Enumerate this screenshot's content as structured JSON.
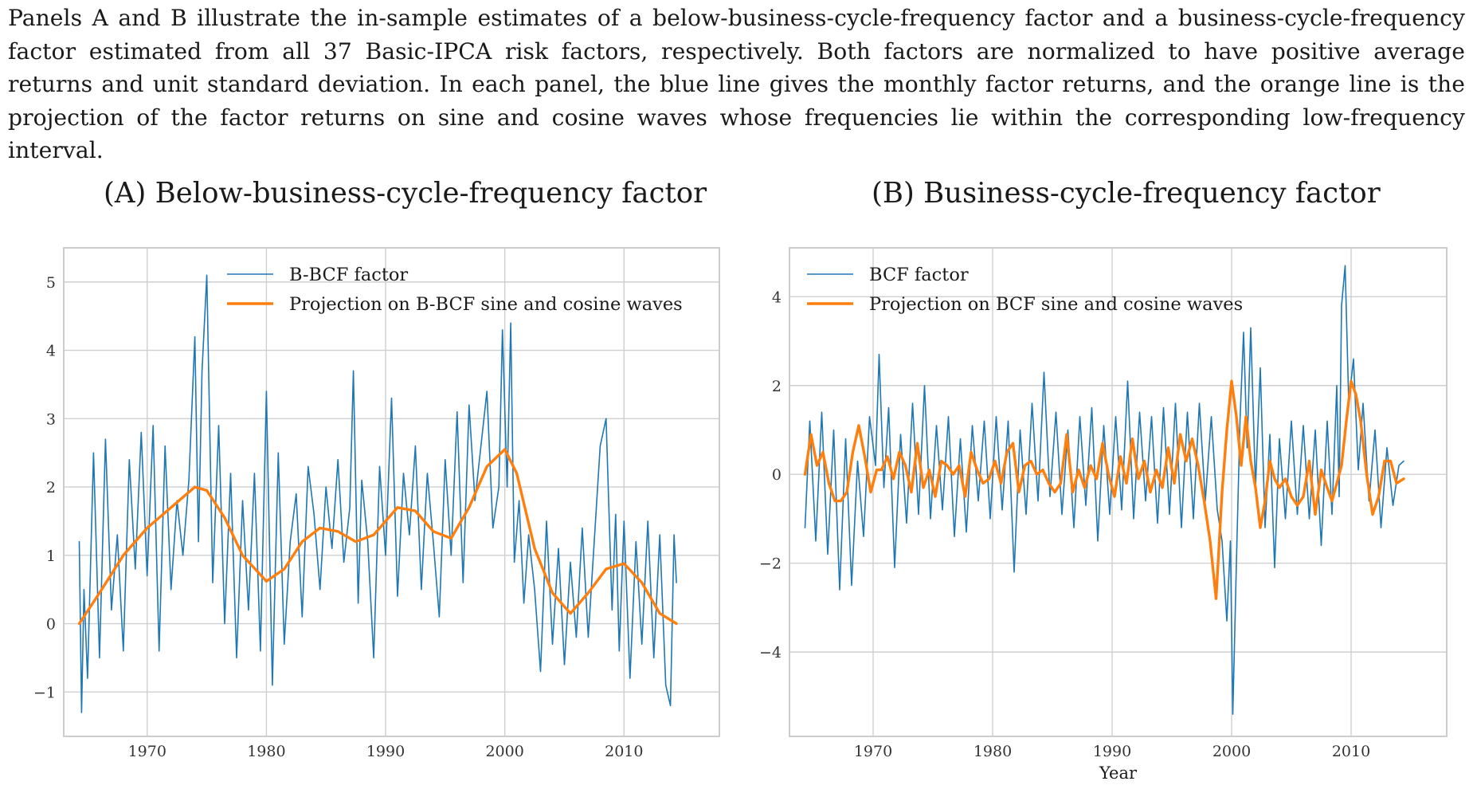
{
  "caption": "Panels A and B illustrate the in-sample estimates of a below-business-cycle-frequency factor and a business-cycle-frequency factor estimated from all 37 Basic-IPCA risk factors, respectively. Both factors are normalized to have positive average returns and unit standard deviation. In each panel, the blue line gives the monthly factor returns, and the orange line is the projection of the factor returns on sine and cosine waves whose frequencies lie within the corresponding low-frequency interval.",
  "colors": {
    "factor": "#1f77b4",
    "projection": "#ff7f0e",
    "grid": "#cfcfcf",
    "spine": "#cccccc"
  },
  "chart_data": [
    {
      "type": "line",
      "panel_title": "(A) Below-business-cycle-frequency factor",
      "xlabel": "",
      "ylabel": "",
      "xlim": [
        1963.0,
        2018.0
      ],
      "ylim": [
        -1.65,
        5.5
      ],
      "xticks": [
        1970,
        1980,
        1990,
        2000,
        2010
      ],
      "xtick_labels": [
        "1970",
        "1980",
        "1990",
        "2000",
        "2010"
      ],
      "yticks": [
        -1,
        0,
        1,
        2,
        3,
        4,
        5
      ],
      "ytick_labels": [
        "−1",
        "0",
        "1",
        "2",
        "3",
        "4",
        "5"
      ],
      "grid": true,
      "legend_position": "top-center",
      "series": [
        {
          "name": "B-BCF factor",
          "style": "thin line (monthly returns, jagged)",
          "x": [
            1964.3,
            1964.5,
            1964.7,
            1965.0,
            1965.5,
            1966.0,
            1966.5,
            1967.0,
            1967.5,
            1968.0,
            1968.5,
            1969.0,
            1969.5,
            1970.0,
            1970.5,
            1971.0,
            1971.5,
            1972.0,
            1972.5,
            1973.0,
            1973.5,
            1974.0,
            1974.3,
            1974.6,
            1975.0,
            1975.5,
            1976.0,
            1976.5,
            1977.0,
            1977.5,
            1978.0,
            1978.5,
            1979.0,
            1979.5,
            1980.0,
            1980.5,
            1981.0,
            1981.5,
            1982.0,
            1982.5,
            1983.0,
            1983.5,
            1984.0,
            1984.5,
            1985.0,
            1985.5,
            1986.0,
            1986.5,
            1987.0,
            1987.3,
            1987.7,
            1988.0,
            1988.5,
            1989.0,
            1989.5,
            1990.0,
            1990.5,
            1991.0,
            1991.5,
            1992.0,
            1992.5,
            1993.0,
            1993.5,
            1994.0,
            1994.5,
            1995.0,
            1995.5,
            1996.0,
            1996.5,
            1997.0,
            1997.5,
            1998.0,
            1998.5,
            1999.0,
            1999.5,
            1999.8,
            2000.2,
            2000.5,
            2000.8,
            2001.2,
            2001.6,
            2002.0,
            2002.5,
            2003.0,
            2003.5,
            2004.0,
            2004.5,
            2005.0,
            2005.5,
            2006.0,
            2006.5,
            2007.0,
            2007.5,
            2008.0,
            2008.5,
            2009.0,
            2009.3,
            2009.6,
            2010.0,
            2010.5,
            2011.0,
            2011.5,
            2012.0,
            2012.5,
            2013.0,
            2013.5,
            2013.9,
            2014.2,
            2014.4
          ],
          "y": [
            1.2,
            -1.3,
            0.5,
            -0.8,
            2.5,
            -0.5,
            2.7,
            0.2,
            1.3,
            -0.4,
            2.4,
            0.8,
            2.8,
            0.7,
            2.9,
            -0.4,
            2.6,
            0.5,
            1.8,
            1.0,
            2.1,
            4.2,
            1.2,
            3.7,
            5.1,
            0.6,
            2.9,
            0.0,
            2.2,
            -0.5,
            1.8,
            0.2,
            2.2,
            -0.4,
            3.4,
            -0.9,
            2.5,
            -0.3,
            1.2,
            1.9,
            0.1,
            2.3,
            1.6,
            0.5,
            2.0,
            1.1,
            2.4,
            0.9,
            1.7,
            3.7,
            0.3,
            2.1,
            1.2,
            -0.5,
            2.3,
            1.0,
            3.3,
            0.4,
            2.2,
            1.3,
            2.6,
            0.5,
            2.2,
            1.2,
            0.1,
            2.4,
            1.0,
            3.1,
            0.6,
            3.2,
            1.8,
            2.6,
            3.4,
            1.4,
            2.0,
            4.3,
            2.0,
            4.4,
            0.9,
            1.8,
            0.3,
            1.3,
            0.5,
            -0.7,
            1.5,
            -0.3,
            1.1,
            -0.6,
            0.9,
            -0.2,
            1.4,
            -0.2,
            1.2,
            2.6,
            3.0,
            0.2,
            1.6,
            -0.4,
            1.5,
            -0.8,
            1.2,
            -0.3,
            1.5,
            -0.5,
            1.3,
            -0.9,
            -1.2,
            1.3,
            0.6
          ]
        },
        {
          "name": "Projection on B-BCF sine and cosine waves",
          "style": "thick smooth line",
          "x": [
            1964.3,
            1966.0,
            1968.0,
            1970.0,
            1972.0,
            1974.0,
            1975.0,
            1976.5,
            1978.0,
            1980.0,
            1981.5,
            1983.0,
            1984.5,
            1986.0,
            1987.5,
            1989.0,
            1991.0,
            1992.5,
            1994.0,
            1995.5,
            1997.0,
            1998.5,
            2000.0,
            2001.0,
            2002.5,
            2004.0,
            2005.5,
            2007.0,
            2008.5,
            2010.0,
            2011.5,
            2013.0,
            2014.4
          ],
          "y": [
            0.0,
            0.45,
            1.0,
            1.4,
            1.7,
            2.0,
            1.95,
            1.55,
            1.0,
            0.62,
            0.8,
            1.2,
            1.4,
            1.35,
            1.2,
            1.3,
            1.7,
            1.65,
            1.35,
            1.25,
            1.7,
            2.3,
            2.55,
            2.2,
            1.1,
            0.45,
            0.15,
            0.45,
            0.8,
            0.88,
            0.6,
            0.15,
            0.0
          ]
        }
      ]
    },
    {
      "type": "line",
      "panel_title": "(B) Business-cycle-frequency factor",
      "xlabel": "Year",
      "ylabel": "",
      "xlim": [
        1963.0,
        2018.0
      ],
      "ylim": [
        -5.9,
        5.1
      ],
      "xticks": [
        1970,
        1980,
        1990,
        2000,
        2010
      ],
      "xtick_labels": [
        "1970",
        "1980",
        "1990",
        "2000",
        "2010"
      ],
      "yticks": [
        -4,
        -2,
        0,
        2,
        4
      ],
      "ytick_labels": [
        "−4",
        "−2",
        "0",
        "2",
        "4"
      ],
      "grid": true,
      "legend_position": "top-left",
      "series": [
        {
          "name": "BCF factor",
          "style": "thin line (monthly returns, jagged)",
          "x": [
            1964.3,
            1964.7,
            1965.2,
            1965.7,
            1966.2,
            1966.7,
            1967.2,
            1967.7,
            1968.2,
            1968.7,
            1969.2,
            1969.7,
            1970.2,
            1970.5,
            1970.9,
            1971.3,
            1971.8,
            1972.3,
            1972.8,
            1973.3,
            1973.8,
            1974.3,
            1974.8,
            1975.3,
            1975.8,
            1976.3,
            1976.8,
            1977.3,
            1977.8,
            1978.3,
            1978.8,
            1979.3,
            1979.8,
            1980.3,
            1980.8,
            1981.3,
            1981.8,
            1982.3,
            1982.8,
            1983.3,
            1983.8,
            1984.3,
            1984.8,
            1985.3,
            1985.8,
            1986.3,
            1986.8,
            1987.3,
            1987.8,
            1988.3,
            1988.8,
            1989.3,
            1989.8,
            1990.3,
            1990.8,
            1991.3,
            1991.8,
            1992.3,
            1992.8,
            1993.3,
            1993.8,
            1994.3,
            1994.8,
            1995.3,
            1995.8,
            1996.3,
            1996.8,
            1997.3,
            1997.8,
            1998.3,
            1998.8,
            1999.2,
            1999.6,
            1999.9,
            2000.1,
            2000.4,
            2000.7,
            2001.0,
            2001.3,
            2001.6,
            2002.0,
            2002.4,
            2002.8,
            2003.2,
            2003.6,
            2004.0,
            2004.5,
            2005.0,
            2005.5,
            2006.0,
            2006.5,
            2007.0,
            2007.5,
            2008.0,
            2008.4,
            2008.8,
            2009.0,
            2009.2,
            2009.5,
            2009.8,
            2010.2,
            2010.6,
            2011.0,
            2011.5,
            2012.0,
            2012.5,
            2013.0,
            2013.5,
            2014.0,
            2014.4
          ],
          "y": [
            -1.2,
            1.2,
            -1.5,
            1.4,
            -1.8,
            1.0,
            -2.6,
            0.8,
            -2.5,
            0.3,
            -1.4,
            1.3,
            0.2,
            2.7,
            -0.3,
            1.5,
            -2.1,
            0.9,
            -1.1,
            1.6,
            -0.9,
            2.0,
            -1.0,
            1.1,
            -0.8,
            1.3,
            -1.4,
            0.8,
            -1.3,
            1.1,
            -0.6,
            1.2,
            -1.0,
            1.3,
            -0.8,
            1.2,
            -2.2,
            1.0,
            -0.9,
            1.6,
            -0.6,
            2.3,
            -0.5,
            1.4,
            -0.9,
            1.0,
            -1.2,
            1.3,
            -0.7,
            1.5,
            -1.5,
            1.1,
            -0.9,
            1.3,
            -0.8,
            2.1,
            -1.0,
            1.4,
            -0.6,
            1.3,
            -1.1,
            1.5,
            -0.9,
            1.6,
            -1.2,
            1.4,
            -1.0,
            1.6,
            -0.6,
            1.3,
            -0.8,
            -1.5,
            -3.3,
            -1.5,
            -5.4,
            -2.0,
            1.2,
            3.2,
            0.6,
            3.3,
            -0.3,
            2.4,
            -1.2,
            0.9,
            -2.1,
            0.8,
            -1.0,
            1.2,
            -0.9,
            1.1,
            -1.0,
            1.0,
            -1.6,
            1.2,
            -0.9,
            2.0,
            -0.5,
            3.8,
            4.7,
            1.6,
            2.6,
            0.1,
            1.6,
            -0.6,
            1.0,
            -1.2,
            0.6,
            -0.7,
            0.2,
            0.3
          ]
        },
        {
          "name": "Projection on BCF sine and cosine waves",
          "style": "thick smooth line",
          "x": [
            1964.3,
            1964.8,
            1965.3,
            1965.8,
            1966.3,
            1966.8,
            1967.3,
            1967.8,
            1968.3,
            1968.8,
            1969.3,
            1969.8,
            1970.3,
            1970.7,
            1971.2,
            1971.7,
            1972.2,
            1972.7,
            1973.2,
            1973.7,
            1974.2,
            1974.7,
            1975.2,
            1975.7,
            1976.2,
            1976.7,
            1977.2,
            1977.7,
            1978.2,
            1978.7,
            1979.2,
            1979.7,
            1980.2,
            1980.7,
            1981.2,
            1981.7,
            1982.2,
            1982.7,
            1983.2,
            1983.7,
            1984.2,
            1984.7,
            1985.2,
            1985.7,
            1986.2,
            1986.7,
            1987.2,
            1987.7,
            1988.2,
            1988.7,
            1989.2,
            1989.7,
            1990.2,
            1990.7,
            1991.2,
            1991.7,
            1992.2,
            1992.7,
            1993.2,
            1993.7,
            1994.2,
            1994.7,
            1995.2,
            1995.7,
            1996.2,
            1996.7,
            1997.2,
            1997.7,
            1998.2,
            1998.7,
            1999.2,
            1999.6,
            2000.0,
            2000.4,
            2000.8,
            2001.2,
            2001.6,
            2002.0,
            2002.4,
            2002.8,
            2003.2,
            2003.6,
            2004.0,
            2004.5,
            2005.0,
            2005.5,
            2006.0,
            2006.5,
            2007.0,
            2007.5,
            2008.0,
            2008.4,
            2008.8,
            2009.2,
            2009.6,
            2010.0,
            2010.4,
            2010.8,
            2011.3,
            2011.8,
            2012.3,
            2012.8,
            2013.3,
            2013.8,
            2014.4
          ],
          "y": [
            0.0,
            0.9,
            0.2,
            0.5,
            -0.2,
            -0.6,
            -0.6,
            -0.4,
            0.5,
            1.1,
            0.4,
            -0.4,
            0.1,
            0.1,
            0.4,
            -0.1,
            0.5,
            0.2,
            -0.4,
            0.7,
            -0.3,
            0.1,
            -0.5,
            0.3,
            0.2,
            0.0,
            0.2,
            -0.5,
            0.5,
            0.1,
            -0.2,
            -0.1,
            0.3,
            -0.2,
            0.5,
            0.7,
            -0.4,
            0.2,
            0.3,
            0.0,
            0.1,
            -0.2,
            -0.4,
            -0.2,
            0.9,
            -0.4,
            0.1,
            -0.3,
            0.2,
            -0.1,
            0.7,
            0.0,
            -0.5,
            0.4,
            -0.2,
            0.8,
            -0.1,
            0.3,
            -0.4,
            0.1,
            -0.3,
            0.6,
            -0.2,
            0.9,
            0.3,
            0.8,
            0.2,
            -0.6,
            -1.5,
            -2.8,
            -0.4,
            1.0,
            2.1,
            1.3,
            0.2,
            1.3,
            0.3,
            -0.3,
            -1.2,
            -0.6,
            0.3,
            -0.1,
            -0.3,
            -0.1,
            -0.5,
            -0.7,
            -0.5,
            0.3,
            -0.9,
            0.1,
            -0.3,
            -0.6,
            -0.2,
            0.2,
            1.2,
            2.1,
            1.8,
            1.2,
            0.0,
            -0.9,
            -0.5,
            0.3,
            0.3,
            -0.2,
            -0.1
          ]
        }
      ]
    }
  ]
}
